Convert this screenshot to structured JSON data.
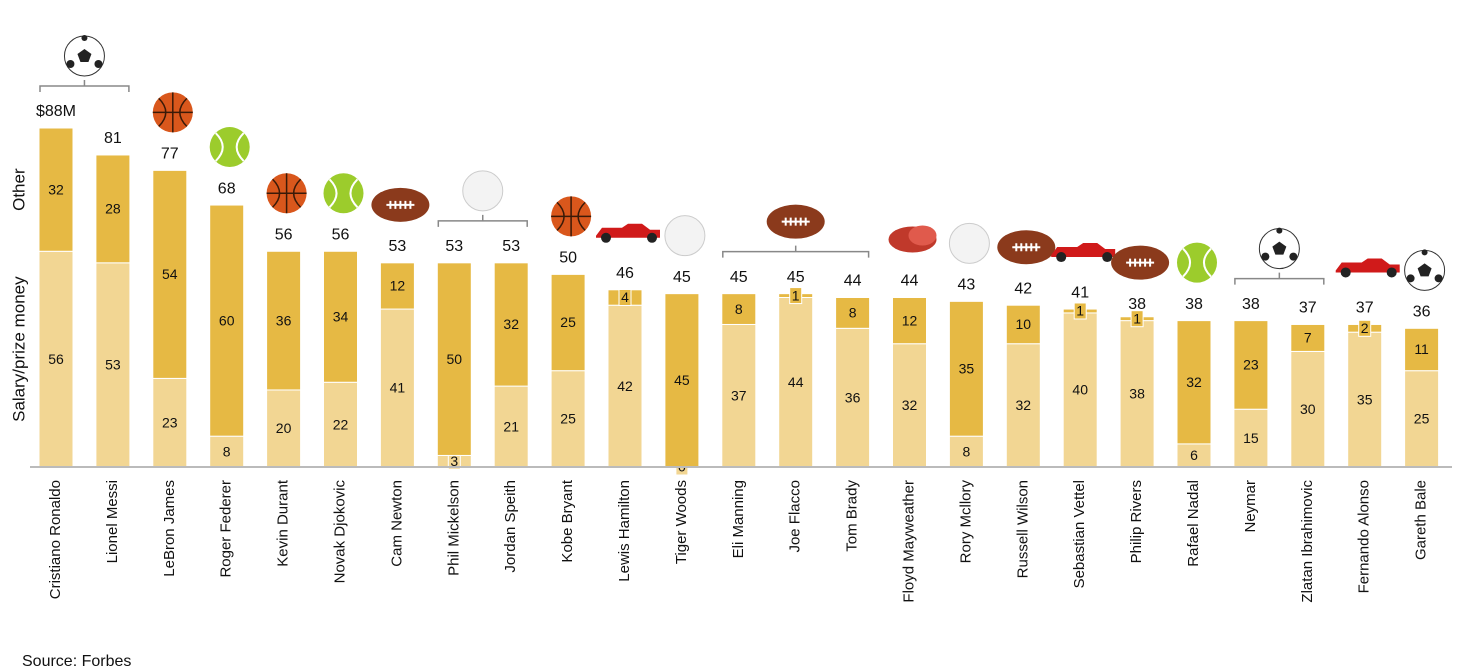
{
  "chart_data": {
    "type": "stacked_bar",
    "categories": [
      "Cristiano Ronaldo",
      "Lionel Messi",
      "LeBron James",
      "Roger Federer",
      "Kevin Durant",
      "Novak Djokovic",
      "Cam Newton",
      "Phil Mickelson",
      "Jordan Speith",
      "Kobe Bryant",
      "Lewis Hamilton",
      "Tiger Woods",
      "Eli Manning",
      "Joe Flacco",
      "Tom Brady",
      "Floyd Mayweather",
      "Rory Mcllory",
      "Russell Wilson",
      "Sebastian Vettel",
      "Philip Rivers",
      "Rafael Nadal",
      "Neymar",
      "Zlatan Ibrahimovic",
      "Fernando Alonso",
      "Gareth Bale"
    ],
    "series": [
      {
        "name": "Salary/prize money",
        "color": "#f2d693",
        "values": [
          56,
          53,
          23,
          8,
          20,
          22,
          41,
          3,
          21,
          25,
          42,
          0,
          37,
          44,
          36,
          32,
          8,
          32,
          40,
          38,
          6,
          15,
          30,
          35,
          25
        ]
      },
      {
        "name": "Other",
        "color": "#e6b944",
        "values": [
          32,
          28,
          54,
          60,
          36,
          34,
          12,
          50,
          32,
          25,
          4,
          45,
          8,
          1,
          8,
          12,
          35,
          10,
          1,
          1,
          32,
          23,
          7,
          2,
          11
        ]
      }
    ],
    "totals": {
      "values": [
        88,
        81,
        77,
        68,
        56,
        56,
        53,
        53,
        53,
        50,
        46,
        45,
        45,
        45,
        44,
        44,
        43,
        42,
        41,
        38,
        38,
        38,
        37,
        37,
        36
      ],
      "value_labels": [
        "$88M",
        "81",
        "77",
        "68",
        "56",
        "56",
        "53",
        "53",
        "53",
        "50",
        "46",
        "45",
        "45",
        "45",
        "44",
        "44",
        "43",
        "42",
        "41",
        "38",
        "38",
        "38",
        "37",
        "37",
        "36"
      ]
    },
    "source": "Source: Forbes"
  }
}
